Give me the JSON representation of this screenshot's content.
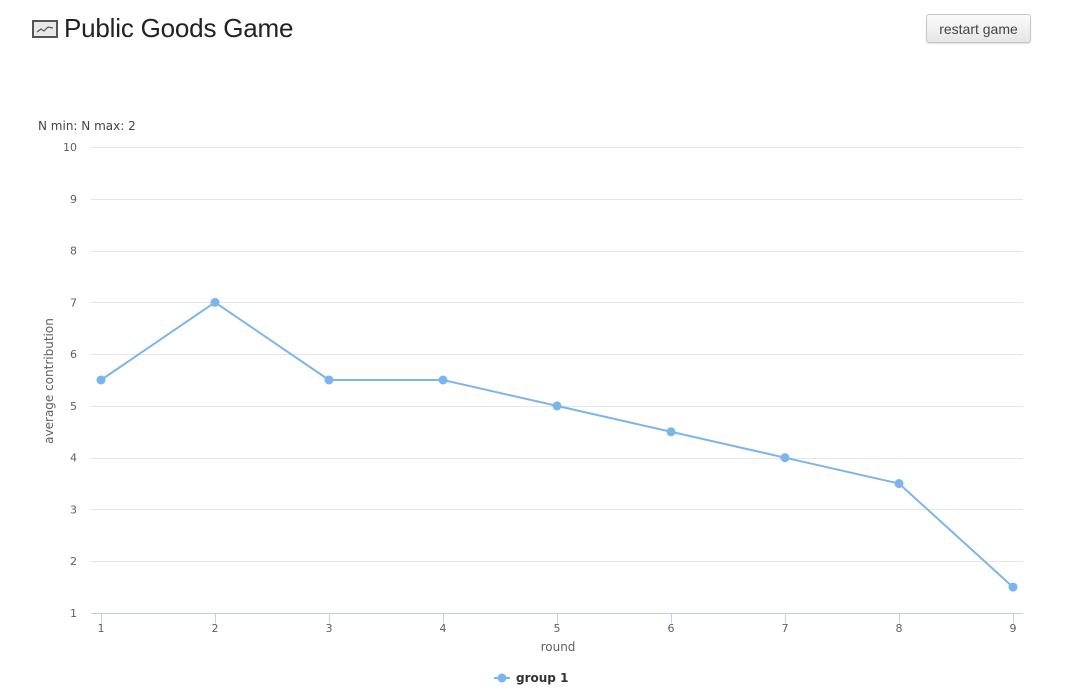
{
  "header": {
    "icon": "line-chart-icon",
    "title": "Public Goods Game",
    "restart_label": "restart game"
  },
  "chart_subtitle": "N min: N max: 2",
  "colors": {
    "series": "#7cb5ec",
    "grid": "#e6e6e6",
    "axis": "#c0d0e0"
  },
  "chart_data": {
    "type": "line",
    "title": "",
    "subtitle": "N min: N max: 2",
    "xlabel": "round",
    "ylabel": "average contribution",
    "x": [
      1,
      2,
      3,
      4,
      5,
      6,
      7,
      8,
      9
    ],
    "xticks": [
      "1",
      "2",
      "3",
      "4",
      "5",
      "6",
      "7",
      "8",
      "9"
    ],
    "yticks": [
      "1",
      "2",
      "3",
      "4",
      "5",
      "6",
      "7",
      "8",
      "9",
      "10"
    ],
    "xlim": [
      1,
      9
    ],
    "ylim": [
      1,
      10
    ],
    "grid": true,
    "legend_placement": "bottom-center",
    "series": [
      {
        "name": "group 1",
        "values": [
          5.5,
          7,
          5.5,
          5.5,
          5,
          4.5,
          4,
          3.5,
          1.5
        ]
      }
    ]
  }
}
